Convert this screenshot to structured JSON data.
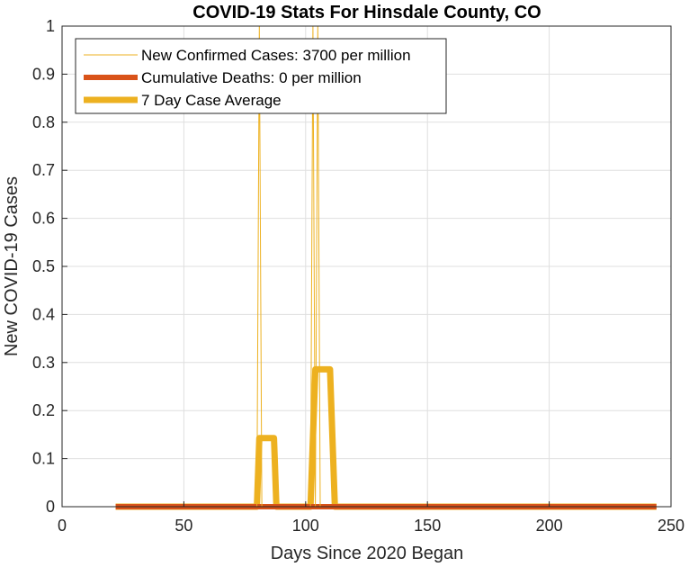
{
  "chart_data": {
    "type": "line",
    "title": "COVID-19 Stats For Hinsdale County, CO",
    "xlabel": "Days Since 2020 Began",
    "ylabel": "New COVID-19 Cases",
    "xlim": [
      0,
      250
    ],
    "ylim": [
      0,
      1
    ],
    "xticks": [
      0,
      50,
      100,
      150,
      200,
      250
    ],
    "yticks": [
      0,
      0.1,
      0.2,
      0.3,
      0.4,
      0.5,
      0.6,
      0.7,
      0.8,
      0.9,
      1
    ],
    "ytick_labels": [
      "0",
      "0.1",
      "0.2",
      "0.3",
      "0.4",
      "0.5",
      "0.6",
      "0.7",
      "0.8",
      "0.9",
      "1"
    ],
    "grid": true,
    "legend_position": "top-left",
    "series": [
      {
        "name": "New Confirmed Cases: 3700 per million",
        "color": "#EDB120",
        "style": "thin",
        "x": [
          22,
          80,
          81,
          82,
          102,
          103,
          104,
          105,
          106,
          244
        ],
        "y": [
          0,
          0,
          1,
          0,
          0,
          1,
          0,
          1,
          0,
          0
        ]
      },
      {
        "name": "Cumulative Deaths: 0 per million",
        "color": "#D95319",
        "style": "thick",
        "x": [
          22,
          244
        ],
        "y": [
          0,
          0
        ]
      },
      {
        "name": "7 Day Case Average",
        "color": "#EDB120",
        "style": "thick",
        "x": [
          22,
          80,
          81,
          87,
          88,
          102,
          103,
          104,
          110,
          111,
          112,
          244
        ],
        "y": [
          0,
          0,
          0.1429,
          0.1429,
          0,
          0,
          0.1429,
          0.2857,
          0.2857,
          0.1429,
          0,
          0
        ]
      }
    ]
  }
}
